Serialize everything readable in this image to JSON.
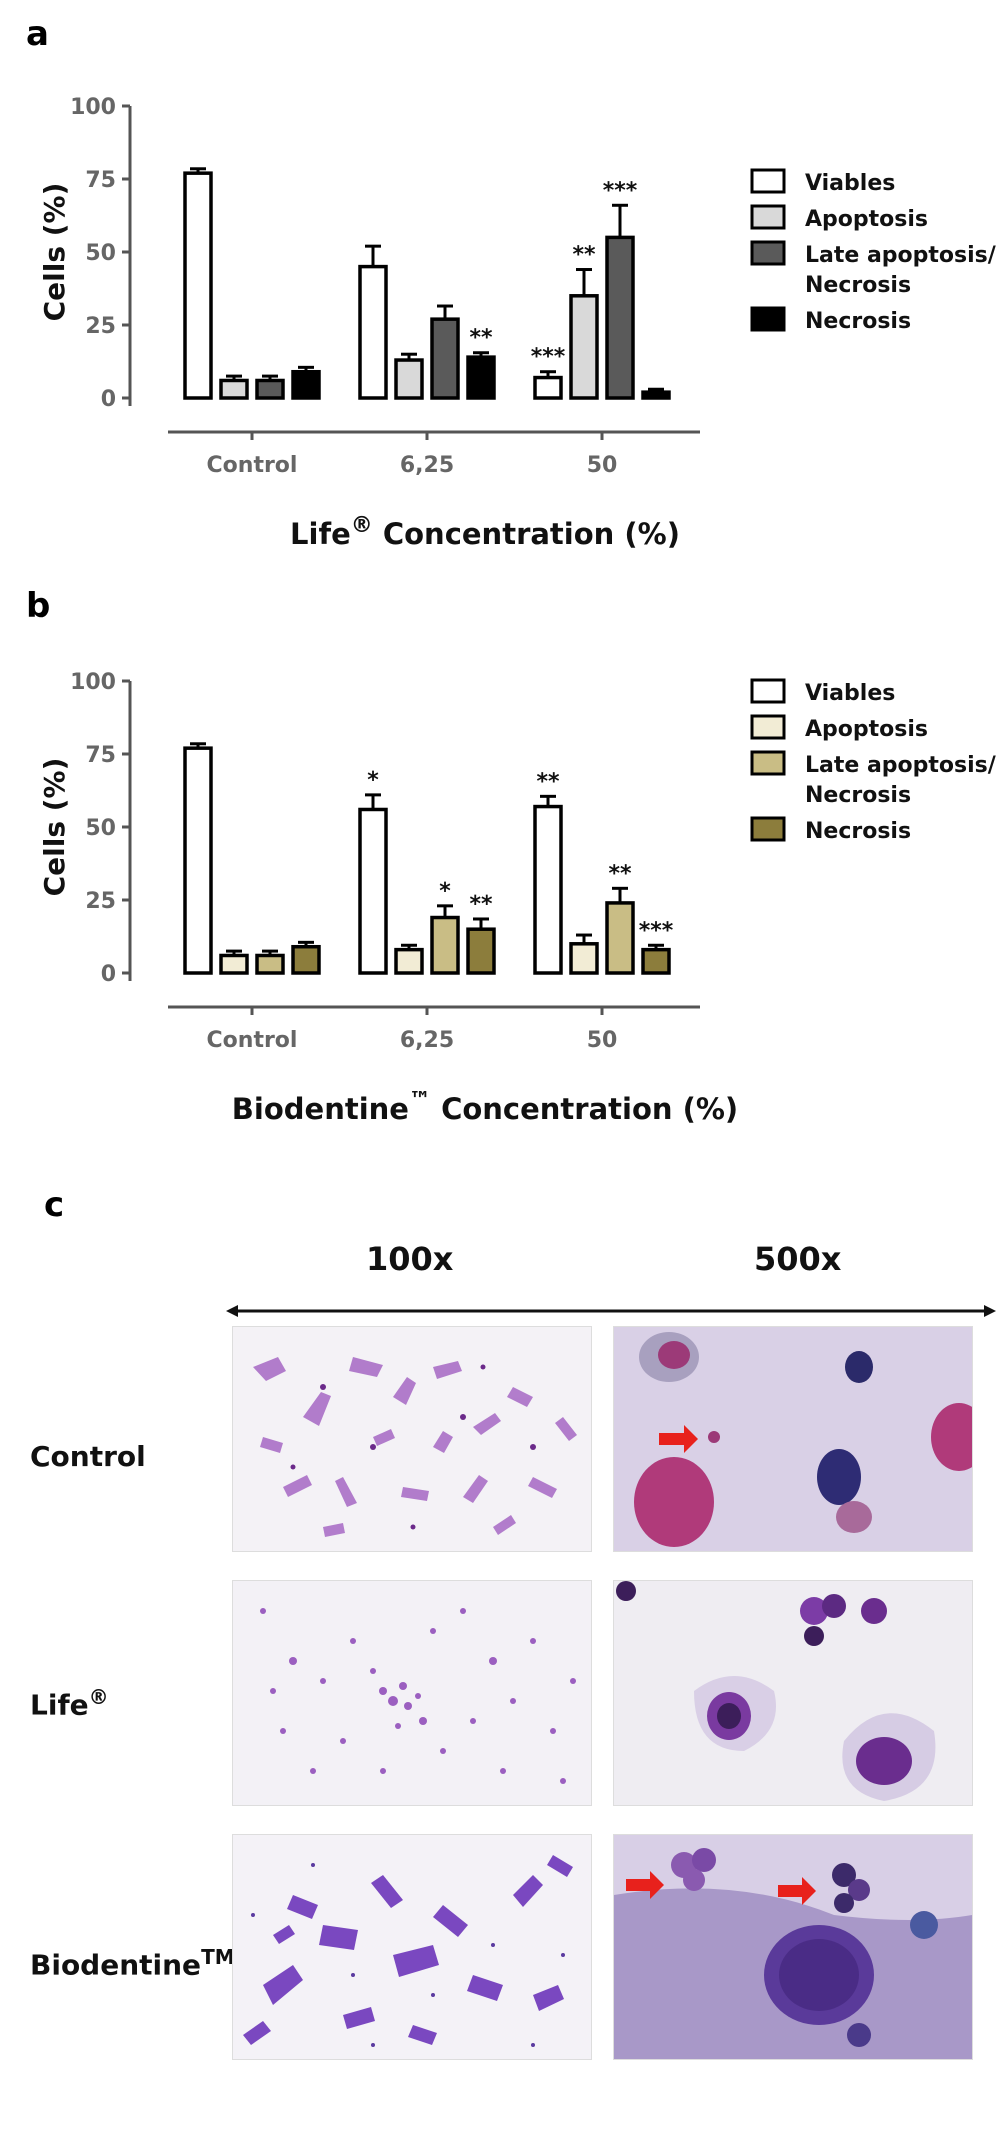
{
  "panels": {
    "a": "a",
    "b": "b",
    "c": "c"
  },
  "chart_data": [
    {
      "type": "bar",
      "panel": "a",
      "categories": [
        "Control",
        "6,25",
        "50"
      ],
      "xlabel": "Life",
      "xlabel_symbol": "®",
      "xlabel_suffix": "Concentration (%)",
      "ylabel": "Cells (%)",
      "ylim": [
        0,
        100
      ],
      "yticks": [
        "0",
        "25",
        "50",
        "75",
        "100"
      ],
      "legend_position": "right",
      "series": [
        {
          "name": "Viables",
          "color": "#ffffff",
          "values": [
            77,
            45,
            7
          ],
          "errors": [
            1.5,
            7,
            2
          ],
          "sig": [
            "",
            "",
            "***"
          ]
        },
        {
          "name": "Apoptosis",
          "color": "#d9d9d9",
          "values": [
            6,
            13,
            35
          ],
          "errors": [
            1.5,
            2,
            9
          ],
          "sig": [
            "",
            "",
            "**"
          ]
        },
        {
          "name": "Late apoptosis/\nNecrosis",
          "color": "#5a5a5a",
          "values": [
            6,
            27,
            55
          ],
          "errors": [
            1.5,
            4.5,
            11
          ],
          "sig": [
            "",
            "",
            "***"
          ]
        },
        {
          "name": "Necrosis",
          "color": "#000000",
          "values": [
            9,
            14,
            2
          ],
          "errors": [
            1.5,
            1.5,
            1
          ],
          "sig": [
            "",
            "**",
            ""
          ]
        }
      ]
    },
    {
      "type": "bar",
      "panel": "b",
      "categories": [
        "Control",
        "6,25",
        "50"
      ],
      "xlabel": "Biodentine",
      "xlabel_symbol": "™",
      "xlabel_suffix": "Concentration (%)",
      "ylabel": "Cells (%)",
      "ylim": [
        0,
        100
      ],
      "yticks": [
        "0",
        "25",
        "50",
        "75",
        "100"
      ],
      "legend_position": "right",
      "series": [
        {
          "name": "Viables",
          "color": "#ffffff",
          "values": [
            77,
            56,
            57
          ],
          "errors": [
            1.5,
            5,
            3.5
          ],
          "sig": [
            "",
            "*",
            "**"
          ]
        },
        {
          "name": "Apoptosis",
          "color": "#f2ecd5",
          "values": [
            6,
            8,
            10
          ],
          "errors": [
            1.5,
            1.5,
            3
          ],
          "sig": [
            "",
            "",
            ""
          ]
        },
        {
          "name": "Late apoptosis/\nNecrosis",
          "color": "#c9bd85",
          "values": [
            6,
            19,
            24
          ],
          "errors": [
            1.5,
            4,
            5
          ],
          "sig": [
            "",
            "*",
            "**"
          ]
        },
        {
          "name": "Necrosis",
          "color": "#8c7d3c",
          "values": [
            9,
            15,
            8
          ],
          "errors": [
            1.5,
            3.5,
            1.5
          ],
          "sig": [
            "",
            "**",
            "***"
          ]
        }
      ]
    }
  ],
  "micrographs": {
    "columns": [
      "100x",
      "500x"
    ],
    "rows": [
      {
        "label": "Control",
        "symbol": ""
      },
      {
        "label": "Life",
        "symbol": "®"
      },
      {
        "label": "Biodentine",
        "symbol": "TM"
      }
    ]
  }
}
